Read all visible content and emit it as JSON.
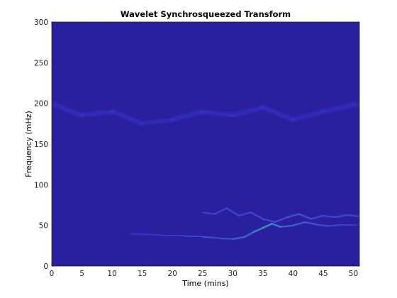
{
  "chart_data": {
    "type": "heatmap",
    "title": "Wavelet Synchrosqueezed Transform",
    "xlabel": "Time (mins)",
    "ylabel": "Frequency (mHz)",
    "xlim": [
      0,
      51
    ],
    "ylim": [
      0,
      300
    ],
    "xticks": [
      0,
      5,
      10,
      15,
      20,
      25,
      30,
      35,
      40,
      45,
      50
    ],
    "yticks": [
      0,
      50,
      100,
      150,
      200,
      250,
      300
    ],
    "xtick_labels": [
      "0",
      "5",
      "10",
      "15",
      "20",
      "25",
      "30",
      "35",
      "40",
      "45",
      "50"
    ],
    "ytick_labels": [
      "0",
      "50",
      "100",
      "150",
      "200",
      "250",
      "300"
    ],
    "grid": false,
    "background_color": "#2a1f9e",
    "colormap": [
      "#2a1f9e",
      "#3d3ee0",
      "#4f6bf0",
      "#37a6ee",
      "#4fdfc9"
    ],
    "ridges": [
      {
        "name": "low-frequency ridge",
        "x": [
          13,
          18,
          22,
          25,
          28,
          30,
          32,
          33.5,
          35,
          36.5,
          38,
          40,
          42,
          44,
          46,
          48,
          51
        ],
        "y": [
          40,
          38,
          37,
          36,
          34,
          33,
          36,
          42,
          47,
          52,
          48,
          50,
          54,
          51,
          49,
          51,
          50
        ],
        "intensity": [
          0.25,
          0.3,
          0.35,
          0.45,
          0.55,
          0.6,
          0.65,
          0.8,
          0.9,
          1.0,
          0.7,
          0.6,
          0.55,
          0.5,
          0.45,
          0.4,
          0.35
        ]
      },
      {
        "name": "upper ridge",
        "x": [
          25,
          27,
          29,
          31,
          33,
          35,
          37,
          39,
          41,
          43,
          45,
          47,
          49,
          51
        ],
        "y": [
          66,
          64,
          71,
          62,
          66,
          58,
          54,
          60,
          64,
          58,
          62,
          60,
          63,
          61
        ],
        "intensity": [
          0.35,
          0.4,
          0.45,
          0.4,
          0.4,
          0.45,
          0.4,
          0.5,
          0.55,
          0.45,
          0.45,
          0.4,
          0.45,
          0.4
        ]
      },
      {
        "name": "background band",
        "x": [
          0,
          5,
          10,
          15,
          20,
          25,
          30,
          35,
          40,
          45,
          51
        ],
        "y": [
          200,
          185,
          190,
          175,
          180,
          190,
          185,
          195,
          180,
          190,
          200
        ],
        "intensity": [
          0.25,
          0.2,
          0.25,
          0.2,
          0.2,
          0.25,
          0.2,
          0.25,
          0.2,
          0.2,
          0.25
        ]
      }
    ],
    "colorbar": false
  }
}
